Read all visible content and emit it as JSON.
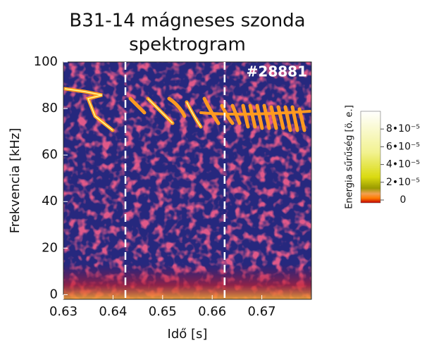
{
  "chart_data": {
    "type": "spectrogram",
    "title": [
      "B31-14 mágneses szonda",
      "spektrogram"
    ],
    "xlabel": "Idő [s]",
    "ylabel": "Frekvencia [kHz]",
    "annotation": "#28881",
    "xlim": [
      0.63,
      0.68
    ],
    "xticks": [
      0.63,
      0.64,
      0.65,
      0.66,
      0.67
    ],
    "ylim": [
      -2,
      100
    ],
    "yticks": [
      0,
      20,
      40,
      60,
      80,
      100
    ],
    "vlines": [
      0.6425,
      0.6625
    ],
    "colorbar": {
      "label": "Energia sűrűség [ö. e.]",
      "lim": [
        0,
        0.0001
      ],
      "ticks": [
        0,
        {
          "value": 2e-05,
          "label": "2•10⁻⁵"
        },
        {
          "value": 4e-05,
          "label": "4•10⁻⁵"
        },
        {
          "value": 6e-05,
          "label": "6•10⁻⁵"
        },
        {
          "value": 8e-05,
          "label": "8•10⁻⁵"
        }
      ]
    }
  }
}
